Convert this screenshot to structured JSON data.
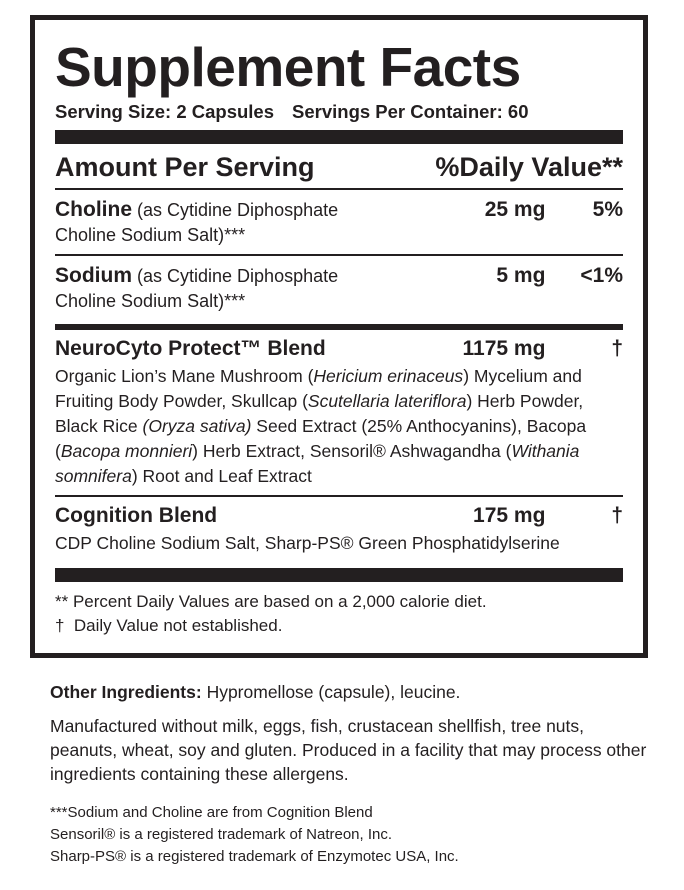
{
  "label": {
    "title": "Supplement Facts",
    "serving_size": "Serving Size: 2 Capsules",
    "servings_per_container": "Servings Per Container: 60",
    "header": {
      "amount": "Amount Per Serving",
      "daily_value": "%Daily Value**"
    },
    "rows": [
      {
        "name": "Choline",
        "detail": "(as Cytidine Diphosphate Choline Sodium Salt)***",
        "amount": "25 mg",
        "dv": "5%"
      },
      {
        "name": "Sodium",
        "detail": "(as Cytidine Diphosphate Choline Sodium Salt)***",
        "amount": "5 mg",
        "dv": "<1%"
      }
    ],
    "blends": [
      {
        "name": "NeuroCyto Protect™ Blend",
        "amount": "1175 mg",
        "dv": "†",
        "ingredients": [
          {
            "text": "Organic Lion’s Mane Mushroom ("
          },
          {
            "text": "Hericium erinaceus",
            "italic": true
          },
          {
            "text": ") Mycelium and Fruiting Body Powder, Skullcap ("
          },
          {
            "text": "Scutellaria lateriflora",
            "italic": true
          },
          {
            "text": ") Herb Powder, Black Rice "
          },
          {
            "text": "(Oryza sativa)",
            "italic": true
          },
          {
            "text": " Seed Extract (25% Anthocyanins), Bacopa ("
          },
          {
            "text": "Bacopa monnieri",
            "italic": true
          },
          {
            "text": ") Herb Extract, Sensoril® Ashwagandha ("
          },
          {
            "text": "Withania somnifera",
            "italic": true
          },
          {
            "text": ") Root and Leaf Extract"
          }
        ]
      },
      {
        "name": "Cognition Blend",
        "amount": "175 mg",
        "dv": "†",
        "ingredients": [
          {
            "text": "CDP Choline Sodium Salt, Sharp-PS® Green Phosphatidylserine"
          }
        ]
      }
    ],
    "footnotes": [
      "** Percent Daily Values are based on a 2,000 calorie diet.",
      "†  Daily Value not established."
    ]
  },
  "other_ingredients": {
    "label": "Other Ingredients:",
    "text": "Hypromellose (capsule), leucine."
  },
  "allergen_statement": "Manufactured without milk, eggs, fish, crustacean shellfish, tree nuts, peanuts, wheat, soy and gluten. Produced in a facility that may process other ingredients containing these allergens.",
  "notes": [
    "***Sodium and Choline are from Cognition Blend",
    "Sensoril® is a registered trademark of Natreon, Inc.",
    "Sharp-PS® is a registered trademark of Enzymotec USA, Inc."
  ]
}
